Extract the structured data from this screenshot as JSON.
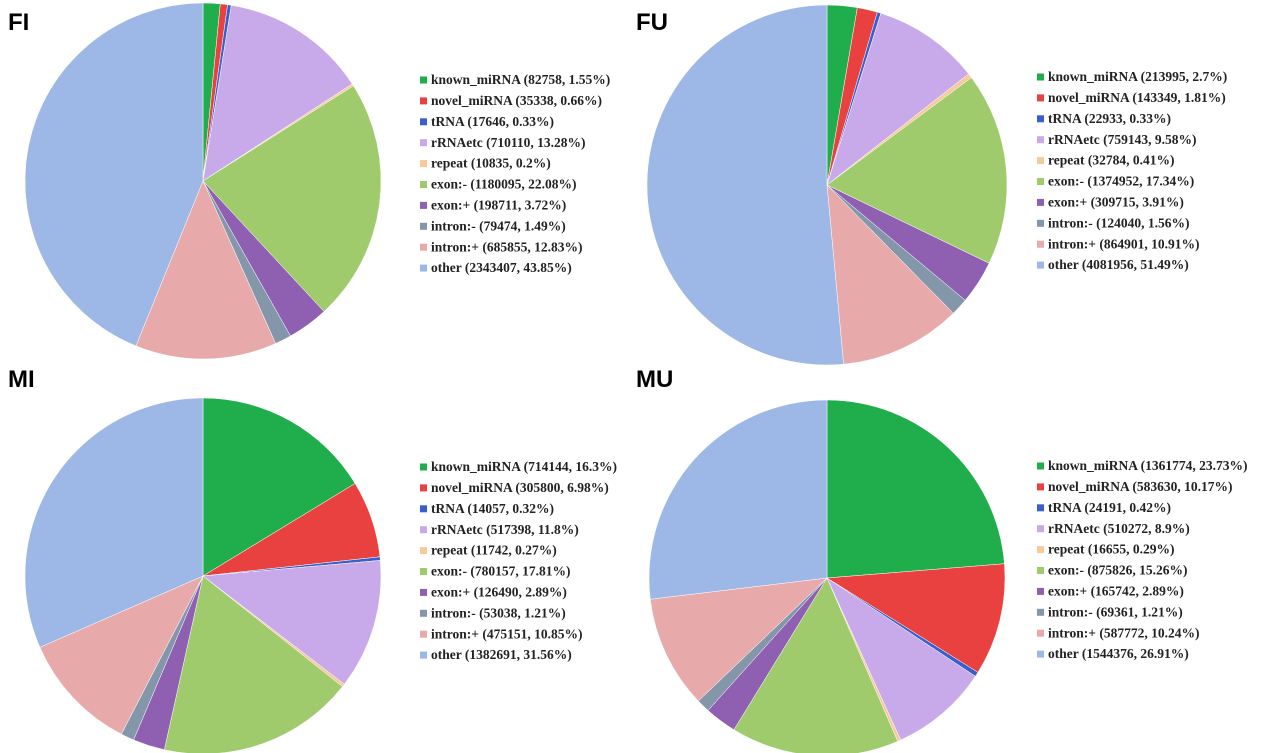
{
  "chart_data": [
    {
      "type": "pie",
      "title": "FI",
      "categories": [
        "known_miRNA (82758, 1.55%)",
        "novel_miRNA (35338, 0.66%)",
        "tRNA (17646, 0.33%)",
        "rRNAetc (710110, 13.28%)",
        "repeat (10835, 0.2%)",
        "exon:- (1180095, 22.08%)",
        "exon:+ (198711, 3.72%)",
        "intron:- (79474, 1.49%)",
        "intron:+ (685855, 12.83%)",
        "other (2343407, 43.85%)"
      ],
      "values": [
        1.55,
        0.66,
        0.33,
        13.28,
        0.2,
        22.08,
        3.72,
        1.49,
        12.83,
        43.85
      ],
      "colors": [
        "#1fae4b",
        "#e8413f",
        "#3a5fcd",
        "#c8a9e9",
        "#f7c99b",
        "#9fcb6d",
        "#8f5fb2",
        "#8496aa",
        "#e8a9aa",
        "#9db7e6"
      ]
    },
    {
      "type": "pie",
      "title": "FU",
      "categories": [
        "known_miRNA (213995, 2.7%)",
        "novel_miRNA (143349, 1.81%)",
        "tRNA (22933, 0.33%)",
        "rRNAetc (759143, 9.58%)",
        "repeat (32784, 0.41%)",
        "exon:- (1374952, 17.34%)",
        "exon:+ (309715, 3.91%)",
        "intron:- (124040, 1.56%)",
        "intron:+ (864901, 10.91%)",
        "other (4081956, 51.49%)"
      ],
      "values": [
        2.7,
        1.81,
        0.33,
        9.58,
        0.41,
        17.34,
        3.91,
        1.56,
        10.91,
        51.49
      ],
      "colors": [
        "#1fae4b",
        "#e8413f",
        "#3a5fcd",
        "#c8a9e9",
        "#f7c99b",
        "#9fcb6d",
        "#8f5fb2",
        "#8496aa",
        "#e8a9aa",
        "#9db7e6"
      ]
    },
    {
      "type": "pie",
      "title": "MI",
      "categories": [
        "known_miRNA (714144, 16.3%)",
        "novel_miRNA (305800, 6.98%)",
        "tRNA (14057, 0.32%)",
        "rRNAetc (517398, 11.8%)",
        "repeat (11742, 0.27%)",
        "exon:- (780157, 17.81%)",
        "exon:+ (126490, 2.89%)",
        "intron:- (53038, 1.21%)",
        "intron:+ (475151, 10.85%)",
        "other (1382691, 31.56%)"
      ],
      "values": [
        16.3,
        6.98,
        0.32,
        11.8,
        0.27,
        17.81,
        2.89,
        1.21,
        10.85,
        31.56
      ],
      "colors": [
        "#1fae4b",
        "#e8413f",
        "#3a5fcd",
        "#c8a9e9",
        "#f7c99b",
        "#9fcb6d",
        "#8f5fb2",
        "#8496aa",
        "#e8a9aa",
        "#9db7e6"
      ]
    },
    {
      "type": "pie",
      "title": "MU",
      "categories": [
        "known_miRNA (1361774, 23.73%)",
        "novel_miRNA (583630, 10.17%)",
        "tRNA (24191, 0.42%)",
        "rRNAetc (510272, 8.9%)",
        "repeat (16655, 0.29%)",
        "exon:- (875826, 15.26%)",
        "exon:+ (165742, 2.89%)",
        "intron:- (69361, 1.21%)",
        "intron:+ (587772, 10.24%)",
        "other (1544376, 26.91%)"
      ],
      "values": [
        23.73,
        10.17,
        0.42,
        8.9,
        0.29,
        15.26,
        2.89,
        1.21,
        10.24,
        26.91
      ],
      "colors": [
        "#1fae4b",
        "#e8413f",
        "#3a5fcd",
        "#c8a9e9",
        "#f7c99b",
        "#9fcb6d",
        "#8f5fb2",
        "#8496aa",
        "#e8a9aa",
        "#9db7e6"
      ]
    }
  ]
}
